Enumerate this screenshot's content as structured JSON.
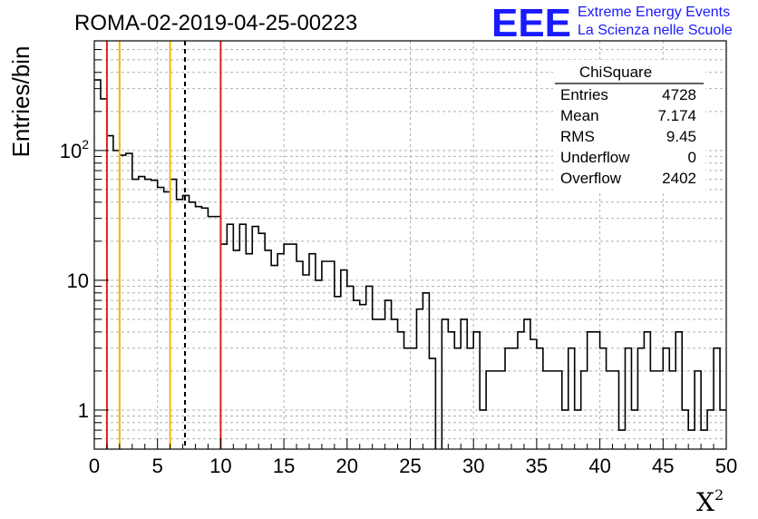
{
  "header": {
    "run_title": "ROMA-02-2019-04-25-00223",
    "logo_text": "EEE",
    "logo_line1": "Extreme Energy Events",
    "logo_line2": "La Scienza nelle Scuole",
    "logo_color": "#1a1aff"
  },
  "stats_box": {
    "title": "ChiSquare",
    "rows": [
      {
        "label": "Entries",
        "value": "4728"
      },
      {
        "label": "Mean",
        "value": "7.174"
      },
      {
        "label": "RMS",
        "value": "9.45"
      },
      {
        "label": "Underflow",
        "value": "0"
      },
      {
        "label": "Overflow",
        "value": "2402"
      }
    ]
  },
  "chart_data": {
    "type": "histogram",
    "title": "ROMA-02-2019-04-25-00223",
    "xlabel": "X²",
    "ylabel": "Entries/bin",
    "xlim": [
      0,
      50
    ],
    "ylim": [
      0.5,
      700
    ],
    "log_y": true,
    "grid": true,
    "bin_width": 0.5,
    "x_ticks": [
      0,
      5,
      10,
      15,
      20,
      25,
      30,
      35,
      40,
      45,
      50
    ],
    "y_ticks": [
      1,
      10,
      100
    ],
    "y_tick_labels": [
      "1",
      "10",
      "10²"
    ],
    "values": [
      350,
      250,
      130,
      100,
      92,
      95,
      60,
      63,
      60,
      59,
      52,
      48,
      60,
      42,
      45,
      40,
      37,
      36,
      31,
      31,
      19,
      27,
      17,
      27,
      16,
      26,
      23,
      17,
      13,
      16,
      19,
      19,
      14,
      11,
      16,
      10,
      14,
      14,
      7.5,
      12,
      9,
      7,
      6.5,
      9,
      5,
      5,
      7,
      5,
      4,
      3,
      3,
      6,
      8,
      2.5,
      0,
      5,
      4,
      3,
      5,
      3,
      4,
      1,
      2,
      2,
      2,
      3,
      3,
      4,
      5,
      3.5,
      3,
      2,
      2,
      2,
      1,
      3,
      1,
      2,
      4,
      4,
      3,
      2,
      2,
      0.7,
      3,
      1,
      3,
      4,
      2,
      2,
      3,
      2,
      4,
      1,
      0.7,
      2,
      0.7,
      1,
      3,
      1
    ],
    "vlines": [
      {
        "x": 1,
        "color": "#e02020",
        "style": "solid"
      },
      {
        "x": 2,
        "color": "#f2b800",
        "style": "solid"
      },
      {
        "x": 6,
        "color": "#f2b800",
        "style": "solid"
      },
      {
        "x": 7.174,
        "color": "#000000",
        "style": "dashed"
      },
      {
        "x": 10,
        "color": "#e02020",
        "style": "solid"
      }
    ]
  }
}
